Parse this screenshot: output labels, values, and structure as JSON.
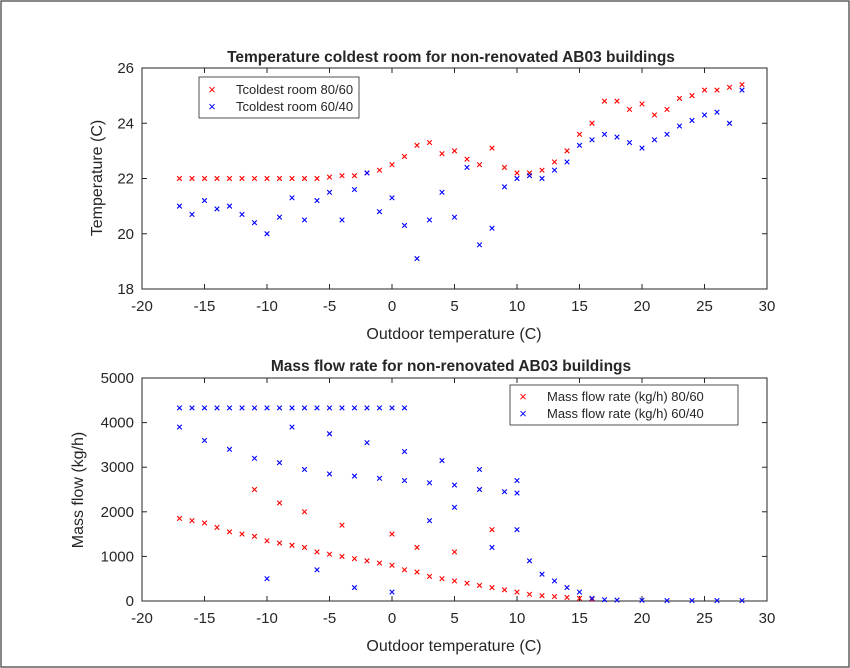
{
  "colors": {
    "series_red": "#ff0000",
    "series_blue": "#0000ff",
    "axis": "#262626",
    "border": "#3a3a3a"
  },
  "chart_data": [
    {
      "type": "scatter",
      "title": "Temperature coldest room for non-renovated AB03 buildings",
      "xlabel": "Outdoor temperature (C)",
      "ylabel": "Temperature (C)",
      "xlim": [
        -20,
        30
      ],
      "ylim": [
        18,
        26
      ],
      "xticks": [
        "-20",
        "-15",
        "-10",
        "-5",
        "0",
        "5",
        "10",
        "15",
        "20",
        "25",
        "30"
      ],
      "yticks": [
        "18",
        "20",
        "22",
        "24",
        "26"
      ],
      "grid": false,
      "legend_position": "top-left",
      "series": [
        {
          "name": "Tcoldest room 80/60",
          "color": "#ff0000",
          "marker": "x",
          "points": [
            [
              -17,
              22.0
            ],
            [
              -16,
              22.0
            ],
            [
              -15,
              22.0
            ],
            [
              -14,
              22.0
            ],
            [
              -13,
              22.0
            ],
            [
              -12,
              22.0
            ],
            [
              -11,
              22.0
            ],
            [
              -10,
              22.0
            ],
            [
              -9,
              22.0
            ],
            [
              -8,
              22.0
            ],
            [
              -7,
              22.0
            ],
            [
              -6,
              22.0
            ],
            [
              -5,
              22.05
            ],
            [
              -4,
              22.1
            ],
            [
              -3,
              22.1
            ],
            [
              -2,
              22.2
            ],
            [
              -1,
              22.3
            ],
            [
              0,
              22.5
            ],
            [
              1,
              22.8
            ],
            [
              2,
              23.2
            ],
            [
              3,
              23.3
            ],
            [
              4,
              22.9
            ],
            [
              5,
              23.0
            ],
            [
              6,
              22.7
            ],
            [
              7,
              22.5
            ],
            [
              8,
              23.1
            ],
            [
              9,
              22.4
            ],
            [
              10,
              22.2
            ],
            [
              11,
              22.2
            ],
            [
              12,
              22.3
            ],
            [
              13,
              22.6
            ],
            [
              14,
              23.0
            ],
            [
              15,
              23.6
            ],
            [
              16,
              24.0
            ],
            [
              17,
              24.8
            ],
            [
              18,
              24.8
            ],
            [
              19,
              24.5
            ],
            [
              20,
              24.7
            ],
            [
              21,
              24.3
            ],
            [
              22,
              24.5
            ],
            [
              23,
              24.9
            ],
            [
              24,
              25.0
            ],
            [
              25,
              25.2
            ],
            [
              26,
              25.2
            ],
            [
              27,
              25.3
            ],
            [
              28,
              25.4
            ]
          ]
        },
        {
          "name": "Tcoldest room 60/40",
          "color": "#0000ff",
          "marker": "x",
          "points": [
            [
              -17,
              21.0
            ],
            [
              -16,
              20.7
            ],
            [
              -15,
              21.2
            ],
            [
              -14,
              20.9
            ],
            [
              -13,
              21.0
            ],
            [
              -12,
              20.7
            ],
            [
              -11,
              20.4
            ],
            [
              -10,
              20.0
            ],
            [
              -9,
              20.6
            ],
            [
              -8,
              21.3
            ],
            [
              -7,
              20.5
            ],
            [
              -6,
              21.2
            ],
            [
              -5,
              21.5
            ],
            [
              -4,
              20.5
            ],
            [
              -3,
              21.6
            ],
            [
              -2,
              22.2
            ],
            [
              -1,
              20.8
            ],
            [
              0,
              21.3
            ],
            [
              1,
              20.3
            ],
            [
              2,
              19.1
            ],
            [
              3,
              20.5
            ],
            [
              4,
              21.5
            ],
            [
              5,
              20.6
            ],
            [
              6,
              22.4
            ],
            [
              7,
              19.6
            ],
            [
              8,
              20.2
            ],
            [
              9,
              21.7
            ],
            [
              10,
              22.0
            ],
            [
              11,
              22.1
            ],
            [
              12,
              22.0
            ],
            [
              13,
              22.3
            ],
            [
              14,
              22.6
            ],
            [
              15,
              23.2
            ],
            [
              16,
              23.4
            ],
            [
              17,
              23.6
            ],
            [
              18,
              23.5
            ],
            [
              19,
              23.3
            ],
            [
              20,
              23.1
            ],
            [
              21,
              23.4
            ],
            [
              22,
              23.6
            ],
            [
              23,
              23.9
            ],
            [
              24,
              24.1
            ],
            [
              25,
              24.3
            ],
            [
              26,
              24.4
            ],
            [
              27,
              24.0
            ],
            [
              28,
              25.2
            ]
          ]
        }
      ]
    },
    {
      "type": "scatter",
      "title": "Mass flow rate for non-renovated AB03 buildings",
      "xlabel": "Outdoor temperature (C)",
      "ylabel": "Mass flow (kg/h)",
      "xlim": [
        -20,
        30
      ],
      "ylim": [
        0,
        5000
      ],
      "xticks": [
        "-20",
        "-15",
        "-10",
        "-5",
        "0",
        "5",
        "10",
        "15",
        "20",
        "25",
        "30"
      ],
      "yticks": [
        "0",
        "1000",
        "2000",
        "3000",
        "4000",
        "5000"
      ],
      "grid": false,
      "legend_position": "top-right",
      "series": [
        {
          "name": "Mass flow rate (kg/h) 80/60",
          "color": "#ff0000",
          "marker": "x",
          "points": [
            [
              -17,
              1850
            ],
            [
              -16,
              1800
            ],
            [
              -15,
              1750
            ],
            [
              -14,
              1650
            ],
            [
              -13,
              1550
            ],
            [
              -12,
              1500
            ],
            [
              -11,
              1450
            ],
            [
              -10,
              1350
            ],
            [
              -9,
              1300
            ],
            [
              -8,
              1250
            ],
            [
              -7,
              1200
            ],
            [
              -6,
              1100
            ],
            [
              -5,
              1050
            ],
            [
              -4,
              1000
            ],
            [
              -3,
              950
            ],
            [
              -2,
              900
            ],
            [
              -1,
              850
            ],
            [
              0,
              800
            ],
            [
              1,
              700
            ],
            [
              2,
              650
            ],
            [
              3,
              550
            ],
            [
              4,
              500
            ],
            [
              5,
              450
            ],
            [
              6,
              400
            ],
            [
              7,
              350
            ],
            [
              8,
              300
            ],
            [
              9,
              250
            ],
            [
              10,
              200
            ],
            [
              11,
              150
            ],
            [
              12,
              120
            ],
            [
              13,
              100
            ],
            [
              14,
              80
            ],
            [
              15,
              60
            ],
            [
              16,
              40
            ],
            [
              -11,
              2500
            ],
            [
              -9,
              2200
            ],
            [
              -7,
              2000
            ],
            [
              -4,
              1700
            ],
            [
              0,
              1500
            ],
            [
              2,
              1200
            ],
            [
              5,
              1100
            ],
            [
              8,
              1600
            ]
          ]
        },
        {
          "name": "Mass flow rate (kg/h) 60/40",
          "color": "#0000ff",
          "marker": "x",
          "points": [
            [
              -17,
              4330
            ],
            [
              -16,
              4330
            ],
            [
              -15,
              4330
            ],
            [
              -14,
              4330
            ],
            [
              -13,
              4330
            ],
            [
              -12,
              4330
            ],
            [
              -11,
              4330
            ],
            [
              -10,
              4330
            ],
            [
              -9,
              4330
            ],
            [
              -8,
              4330
            ],
            [
              -7,
              4330
            ],
            [
              -6,
              4330
            ],
            [
              -5,
              4330
            ],
            [
              -4,
              4330
            ],
            [
              -3,
              4330
            ],
            [
              -2,
              4330
            ],
            [
              -1,
              4330
            ],
            [
              0,
              4330
            ],
            [
              1,
              4330
            ],
            [
              -17,
              3900
            ],
            [
              -15,
              3600
            ],
            [
              -13,
              3400
            ],
            [
              -11,
              3200
            ],
            [
              -9,
              3100
            ],
            [
              -7,
              2950
            ],
            [
              -5,
              2850
            ],
            [
              -3,
              2800
            ],
            [
              -1,
              2750
            ],
            [
              1,
              2700
            ],
            [
              3,
              2650
            ],
            [
              5,
              2600
            ],
            [
              7,
              2500
            ],
            [
              9,
              2450
            ],
            [
              10,
              2420
            ],
            [
              -8,
              3900
            ],
            [
              -5,
              3750
            ],
            [
              -2,
              3550
            ],
            [
              1,
              3350
            ],
            [
              4,
              3150
            ],
            [
              7,
              2950
            ],
            [
              10,
              2700
            ],
            [
              11,
              900
            ],
            [
              12,
              600
            ],
            [
              13,
              450
            ],
            [
              14,
              300
            ],
            [
              15,
              200
            ],
            [
              16,
              60
            ],
            [
              17,
              30
            ],
            [
              18,
              20
            ],
            [
              20,
              15
            ],
            [
              22,
              10
            ],
            [
              24,
              10
            ],
            [
              26,
              10
            ],
            [
              28,
              10
            ],
            [
              -10,
              500
            ],
            [
              -6,
              700
            ],
            [
              -3,
              300
            ],
            [
              0,
              200
            ],
            [
              3,
              1800
            ],
            [
              5,
              2100
            ],
            [
              8,
              1200
            ],
            [
              10,
              1600
            ]
          ]
        }
      ]
    }
  ]
}
